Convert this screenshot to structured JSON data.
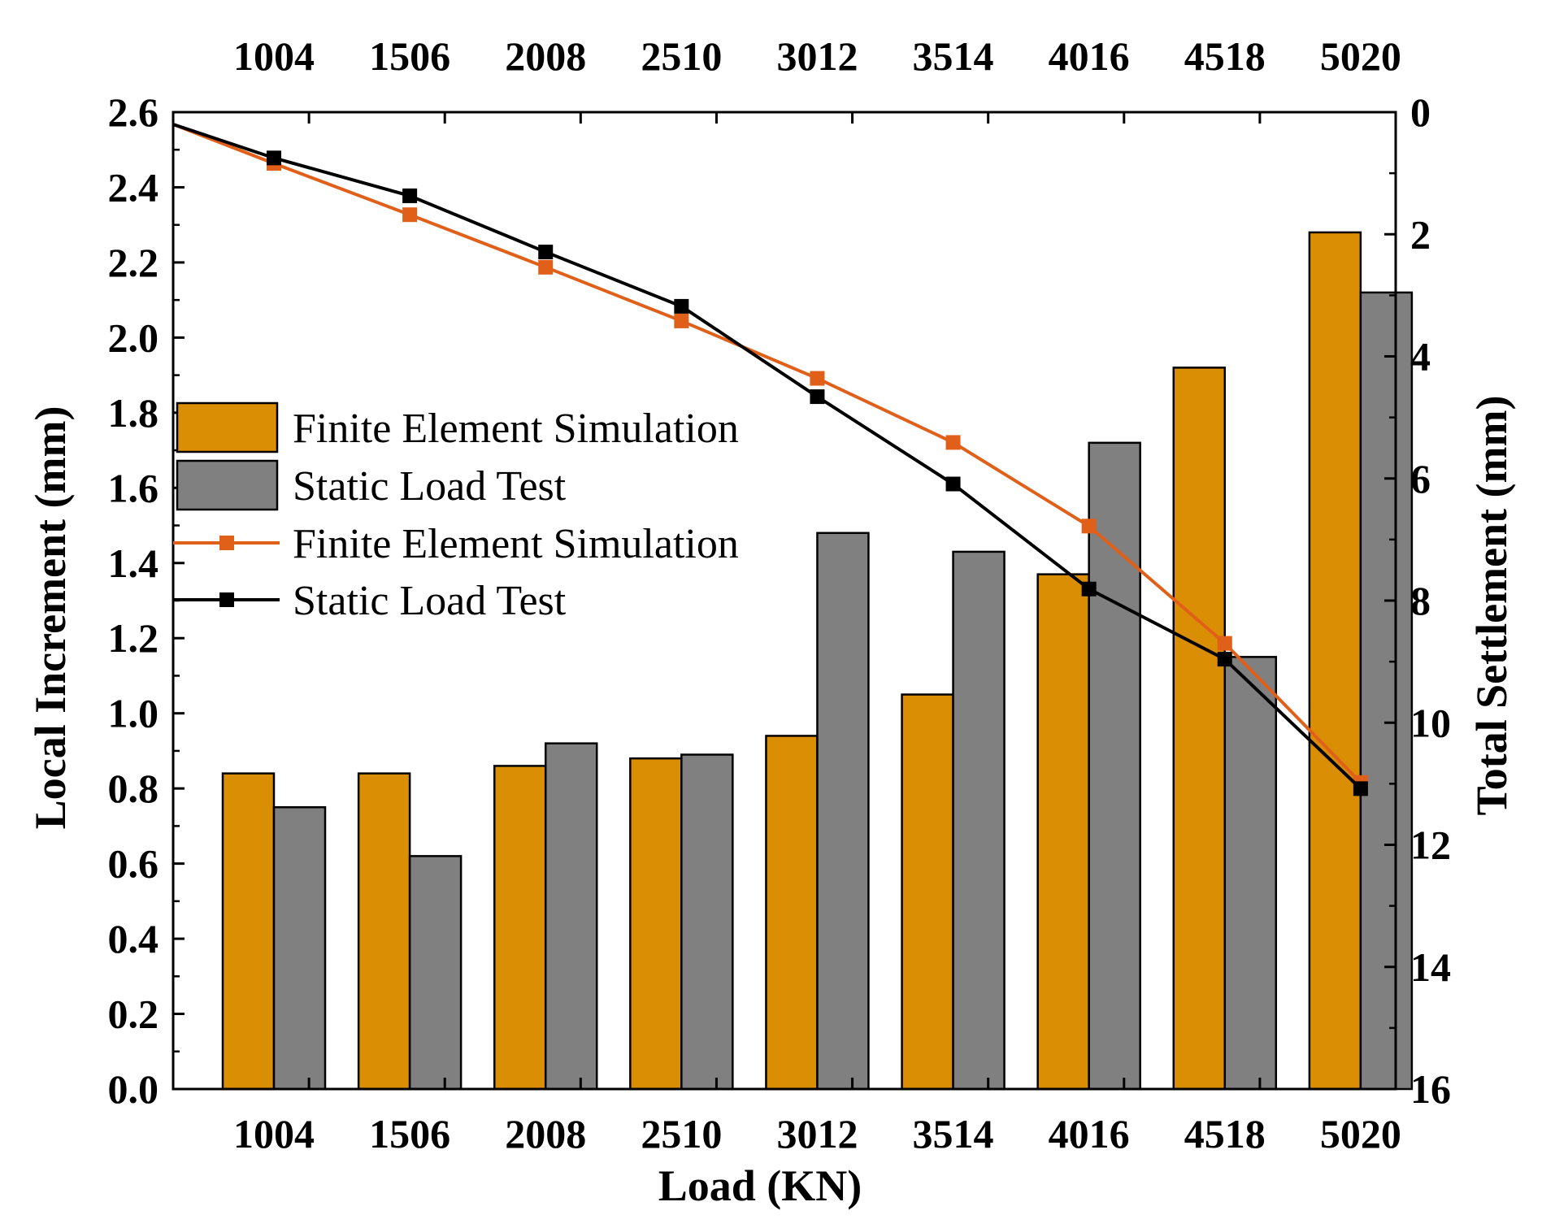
{
  "chart_data": {
    "type": "bar",
    "categories": [
      "1004",
      "1506",
      "2008",
      "2510",
      "3012",
      "3514",
      "4016",
      "4518",
      "5020"
    ],
    "xlabel": "Load (KN)",
    "ylabel": "Local Increment (mm)",
    "y2label": "Total Settlement (mm)",
    "ylim": [
      0,
      2.6
    ],
    "yticks": [
      "0.0",
      "0.2",
      "0.4",
      "0.6",
      "0.8",
      "1.0",
      "1.2",
      "1.4",
      "1.6",
      "1.8",
      "2.0",
      "2.2",
      "2.4",
      "2.6"
    ],
    "y2lim": [
      0,
      16
    ],
    "y2_inverted": true,
    "y2ticks": [
      "0",
      "2",
      "4",
      "6",
      "8",
      "10",
      "12",
      "14",
      "16"
    ],
    "bar_series": [
      {
        "name": "Finite Element Simulation",
        "color": "#D98E04",
        "values": [
          0.84,
          0.84,
          0.86,
          0.88,
          0.94,
          1.05,
          1.37,
          1.92,
          2.28
        ]
      },
      {
        "name": "Static Load Test",
        "color": "#808080",
        "values": [
          0.75,
          0.62,
          0.92,
          0.89,
          1.48,
          1.43,
          1.72,
          1.15,
          2.12
        ]
      }
    ],
    "line_series": [
      {
        "name": "Finite Element Simulation",
        "color": "#E0601A",
        "marker": "square",
        "start": 0.2,
        "values": [
          0.84,
          1.68,
          2.54,
          3.42,
          4.36,
          5.41,
          6.78,
          8.7,
          10.98
        ]
      },
      {
        "name": "Static Load Test",
        "color": "#000000",
        "marker": "square",
        "start": 0.2,
        "values": [
          0.75,
          1.37,
          2.29,
          3.18,
          4.66,
          6.09,
          7.81,
          8.96,
          11.08
        ]
      }
    ],
    "legend": {
      "position": "center-left",
      "entries": [
        {
          "label": "Finite Element Simulation",
          "kind": "bar",
          "series": 0
        },
        {
          "label": "Static Load Test",
          "kind": "bar",
          "series": 1
        },
        {
          "label": "Finite Element Simulation",
          "kind": "line",
          "series": 0
        },
        {
          "label": "Static Load Test",
          "kind": "line",
          "series": 1
        }
      ]
    }
  }
}
